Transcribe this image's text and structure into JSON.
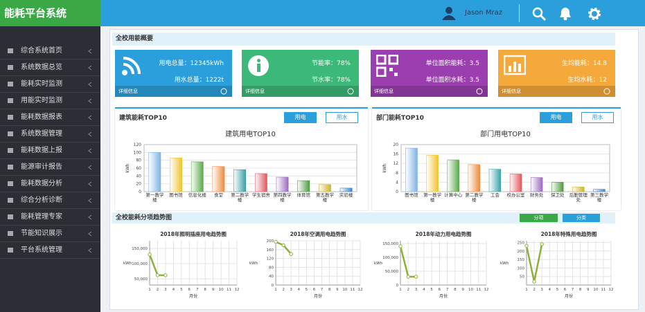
{
  "header": {
    "title": "能耗平台系统",
    "user": "Jason Mraz"
  },
  "sidebar": {
    "items": [
      "综合系统首页",
      "系统数据总览",
      "能耗实时监测",
      "用能实时监测",
      "能耗数据报表",
      "系统数据管理",
      "能耗数据上报",
      "能源审计报告",
      "能耗数据分析",
      "综合分析诊断",
      "能耗管理专家",
      "节能知识展示",
      "平台系统管理"
    ]
  },
  "overview": {
    "title": "全校用能概要",
    "cards": [
      {
        "lines": [
          "用电总量：12345kWh",
          "用水总量：1222t"
        ],
        "footer": "详细信息"
      },
      {
        "lines": [
          "节能率：78%",
          "节水率：78%"
        ],
        "footer": "详细信息"
      },
      {
        "lines": [
          "单位面积能耗：3.5",
          "单位面积水耗：3.5"
        ],
        "footer": "详细信息"
      },
      {
        "lines": [
          "生均能耗：14.8",
          "生均水耗：12"
        ],
        "footer": "详细信息"
      }
    ]
  },
  "panels": [
    {
      "title": "建筑能耗TOP10",
      "tabs": [
        "用电",
        "用水"
      ]
    },
    {
      "title": "部门能耗TOP10",
      "tabs": [
        "用电",
        "用水"
      ]
    }
  ],
  "trend": {
    "title": "全校能耗分项趋势图",
    "tabs": [
      "分项",
      "分类"
    ]
  },
  "chart_data": [
    {
      "type": "bar",
      "title": "建筑用电TOP10",
      "y_label": "kWh",
      "categories": [
        "第一教学楼",
        "图书馆",
        "信息化楼",
        "食堂",
        "第二教学楼",
        "学生宿舍",
        "第四教学楼",
        "体育馆",
        "第五教学楼",
        "实验楼"
      ],
      "values": [
        100,
        86,
        76,
        64,
        56,
        46,
        37,
        28,
        18,
        9
      ],
      "colors": [
        "#7fb2e5",
        "#f0c330",
        "#5aa84a",
        "#ef8a3c",
        "#3aa0a8",
        "#e2545c",
        "#9a6bbd",
        "#4e9a3f",
        "#c9b52e",
        "#3d85c6"
      ],
      "ylim": [
        0,
        120
      ],
      "yticks": [
        0,
        20,
        40,
        60,
        80,
        100,
        120
      ],
      "grid": true
    },
    {
      "type": "bar",
      "title": "部门用电TOP10",
      "y_label": "kWh",
      "categories": [
        "图书馆",
        "第一教学楼",
        "计算中心",
        "第二教学楼",
        "工会",
        "校办公室",
        "财务处",
        "保卫处",
        "后勤管理处",
        "第三教学楼"
      ],
      "values": [
        18.5,
        15.5,
        13.5,
        11.5,
        9.5,
        7.5,
        6,
        4,
        2,
        1
      ],
      "colors": [
        "#7fb2e5",
        "#f0c330",
        "#5aa84a",
        "#ef8a3c",
        "#3aa0a8",
        "#e2545c",
        "#9a6bbd",
        "#4e9a3f",
        "#c9b52e",
        "#3d85c6"
      ],
      "ylim": [
        0,
        20
      ],
      "yticks": [
        0,
        4,
        8,
        12,
        16,
        20
      ],
      "grid": true
    },
    {
      "type": "line",
      "title": "2018年照明插座用电趋势图",
      "x_label": "月份",
      "y_label": "kWh",
      "x": [
        1,
        2,
        3
      ],
      "values": [
        130000,
        62000,
        62000
      ],
      "color": "#8fae3b",
      "xlim": [
        1,
        12
      ],
      "xticks": [
        1,
        2,
        3,
        4,
        5,
        6,
        7,
        8,
        9,
        10,
        11,
        12
      ],
      "ylim": [
        30000,
        175000
      ],
      "yticks": [
        {
          "value": 50000,
          "label": "50,000"
        },
        {
          "value": 100000,
          "label": "100,000"
        },
        {
          "value": 150000,
          "label": "150,000"
        }
      ],
      "grid": true
    },
    {
      "type": "line",
      "title": "2018年空调用电趋势图",
      "x_label": "月份",
      "y_label": "kWh",
      "x": [
        1,
        2,
        3
      ],
      "values": [
        195,
        180,
        140
      ],
      "color": "#8fae3b",
      "xlim": [
        1,
        12
      ],
      "xticks": [
        1,
        2,
        3,
        4,
        5,
        6,
        7,
        8,
        9,
        10,
        11,
        12
      ],
      "ylim": [
        0,
        200
      ],
      "yticks": [
        0,
        40,
        80,
        120,
        160,
        200
      ],
      "grid": true
    },
    {
      "type": "line",
      "title": "2018年动力用电趋势图",
      "x_label": "月份",
      "y_label": "kWh",
      "x": [
        1,
        2,
        3
      ],
      "values": [
        140000,
        30000,
        30000
      ],
      "color": "#8fae3b",
      "xlim": [
        1,
        12
      ],
      "xticks": [
        1,
        2,
        3,
        4,
        5,
        6,
        7,
        8,
        9,
        10,
        11,
        12
      ],
      "ylim": [
        0,
        160000
      ],
      "yticks": [
        0,
        {
          "value": 50000,
          "label": "50,000"
        },
        {
          "value": 100000,
          "label": "100,000"
        },
        {
          "value": 150000,
          "label": "150,000"
        }
      ],
      "grid": true
    },
    {
      "type": "line",
      "title": "2018年特殊用电趋势图",
      "x_label": "月份",
      "y_label": "kWh",
      "x": [
        1,
        2,
        3
      ],
      "values": [
        230,
        20,
        240
      ],
      "color": "#8fae3b",
      "xlim": [
        1,
        12
      ],
      "xticks": [
        1,
        2,
        3,
        4,
        5,
        6,
        7,
        8,
        9,
        10,
        11,
        12
      ],
      "ylim": [
        0,
        260
      ],
      "yticks": [
        50,
        100,
        150,
        200,
        250
      ],
      "grid": true
    }
  ]
}
